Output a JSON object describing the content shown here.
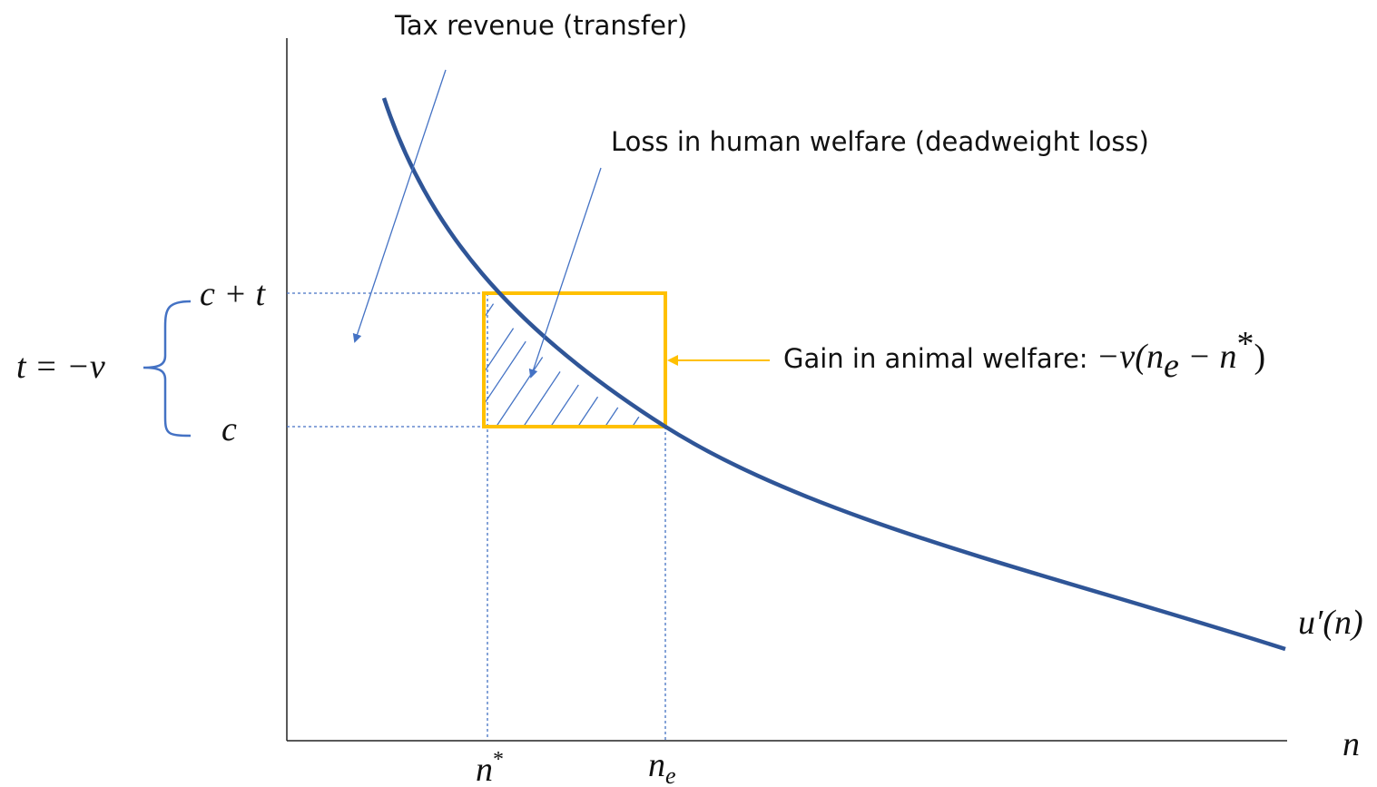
{
  "annotations": {
    "tax_revenue": "Tax revenue (transfer)",
    "deadweight_loss": "Loss in human welfare (deadweight loss)",
    "animal_welfare": {
      "text": "Gain in animal welfare: ",
      "parts": [
        "−v(n",
        "e",
        " − n",
        "*",
        ")"
      ]
    }
  },
  "labels": {
    "c_plus_t": "c + t",
    "c": "c",
    "t_eq": "t = −v",
    "n_star": {
      "base": "n",
      "sup": "*"
    },
    "n_e": {
      "base": "n",
      "sub": "e"
    },
    "n_axis": "n",
    "curve": "u′(n)"
  }
}
